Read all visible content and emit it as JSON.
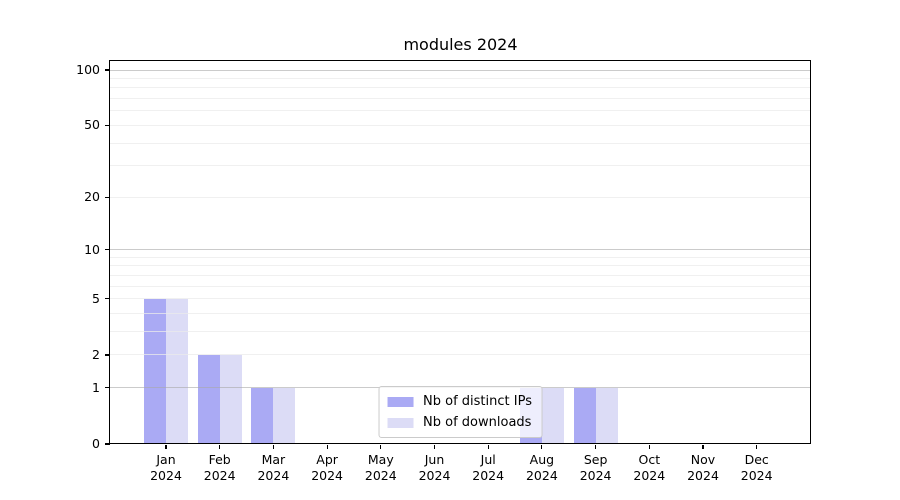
{
  "chart_data": {
    "type": "bar",
    "title": "modules 2024",
    "categories": [
      "Jan",
      "Feb",
      "Mar",
      "Apr",
      "May",
      "Jun",
      "Jul",
      "Aug",
      "Sep",
      "Oct",
      "Nov",
      "Dec"
    ],
    "x_tick_year": "2024",
    "series": [
      {
        "name": "Nb of distinct IPs",
        "color": "#aaaaf4",
        "values": [
          5,
          2,
          1,
          0,
          0,
          0,
          0,
          1,
          1,
          0,
          0,
          0
        ]
      },
      {
        "name": "Nb of downloads",
        "color": "#dcdcf6",
        "values": [
          5,
          2,
          1,
          0,
          0,
          0,
          0,
          1,
          1,
          0,
          0,
          0
        ]
      }
    ],
    "scale": "log1p",
    "ylim": [
      0,
      112
    ],
    "y_tick_labels": [
      0,
      1,
      2,
      5,
      10,
      20,
      50,
      100
    ],
    "major_gridlines": [
      1,
      10,
      100
    ],
    "minor_gridlines": [
      2,
      3,
      4,
      5,
      6,
      7,
      8,
      9,
      20,
      30,
      40,
      50,
      60,
      70,
      80,
      90
    ],
    "grid": "on",
    "legend_position": "lower center",
    "xlabel": "",
    "ylabel": "",
    "colors": {
      "axis": "#000000",
      "text": "#000000",
      "minor_grid": "rgba(235,235,235,0.75)",
      "major_grid": "rgba(168,168,168,0.6)",
      "legend_bg": "rgba(255,255,255,0.8)",
      "legend_border": "#cbcbcb",
      "background": "#ffffff"
    }
  }
}
